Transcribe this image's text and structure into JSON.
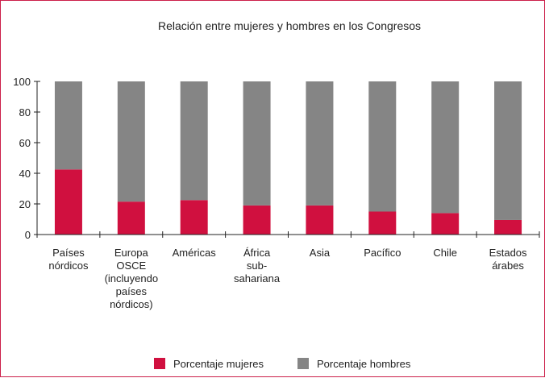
{
  "chart_data": {
    "type": "bar",
    "stacked": true,
    "title": "Relación entre mujeres y hombres en los Congresos",
    "xlabel": "",
    "ylabel": "",
    "ylim": [
      0,
      100
    ],
    "yticks": [
      0,
      20,
      40,
      60,
      80,
      100
    ],
    "grid": false,
    "legend_position": "bottom",
    "categories": [
      [
        "Países",
        "nórdicos"
      ],
      [
        "Europa",
        "OSCE",
        "(incluyendo",
        "países",
        "nórdicos)"
      ],
      [
        "Américas"
      ],
      [
        "África",
        "sub-",
        "sahariana"
      ],
      [
        "Asia"
      ],
      [
        "Pacífico"
      ],
      [
        "Chile"
      ],
      [
        "Estados",
        "árabes"
      ]
    ],
    "series": [
      {
        "name": "Porcentaje mujeres",
        "color": "#d0103f",
        "values": [
          42.5,
          21.5,
          22.5,
          19,
          19,
          15,
          14,
          9.5
        ]
      },
      {
        "name": "Porcentaje hombres",
        "color": "#858585",
        "values": [
          57.5,
          78.5,
          77.5,
          81,
          81,
          85,
          86,
          90.5
        ]
      }
    ]
  }
}
